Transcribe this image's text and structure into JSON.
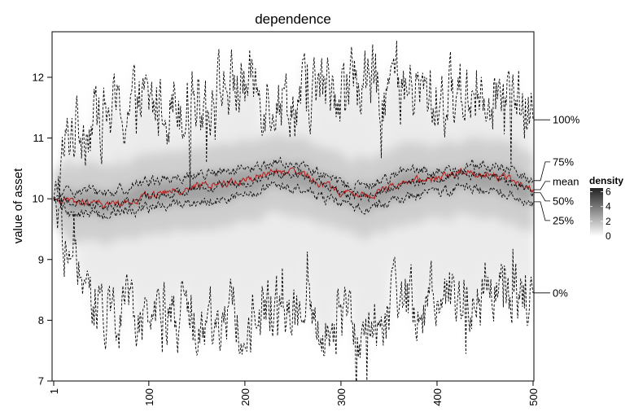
{
  "chart_data": {
    "type": "line",
    "title": "dependence",
    "xlabel": "",
    "ylabel": "value of asset",
    "xlim": [
      1,
      500
    ],
    "ylim": [
      7,
      12.75
    ],
    "x_ticks": [
      1,
      100,
      200,
      300,
      400,
      500
    ],
    "y_ticks": [
      7,
      8,
      9,
      10,
      11,
      12
    ],
    "x_tick_labels": [
      "1",
      "100",
      "200",
      "300",
      "400",
      "500"
    ],
    "y_tick_labels": [
      "7",
      "8",
      "9",
      "10",
      "11",
      "12"
    ],
    "start_value": 10.0,
    "n_steps": 500,
    "background": "density of simulated paths (grayscale shading)",
    "series": [
      {
        "name": "100%",
        "kind": "quantile",
        "end_value": 11.3,
        "color": "#000000",
        "dash": true,
        "anchors": [
          [
            1,
            10
          ],
          [
            20,
            11.2
          ],
          [
            60,
            11.4
          ],
          [
            120,
            11.6
          ],
          [
            200,
            11.9
          ],
          [
            250,
            11.6
          ],
          [
            300,
            11.9
          ],
          [
            350,
            11.9
          ],
          [
            400,
            11.6
          ],
          [
            450,
            11.9
          ],
          [
            500,
            11.3
          ]
        ],
        "noise": 0.65
      },
      {
        "name": "75%",
        "kind": "quantile",
        "end_value": 10.3,
        "color": "#000000",
        "dash": true,
        "anchors": [
          [
            1,
            10
          ],
          [
            20,
            10.15
          ],
          [
            60,
            10.1
          ],
          [
            100,
            10.3
          ],
          [
            150,
            10.4
          ],
          [
            200,
            10.45
          ],
          [
            230,
            10.6
          ],
          [
            260,
            10.55
          ],
          [
            300,
            10.25
          ],
          [
            330,
            10.2
          ],
          [
            360,
            10.45
          ],
          [
            400,
            10.45
          ],
          [
            430,
            10.55
          ],
          [
            470,
            10.5
          ],
          [
            500,
            10.3
          ]
        ],
        "noise": 0.1
      },
      {
        "name": "mean",
        "kind": "mean",
        "end_value": 10.15,
        "color": "#b22222",
        "dash": false,
        "anchors": [
          [
            1,
            10
          ],
          [
            20,
            9.95
          ],
          [
            60,
            9.9
          ],
          [
            100,
            10.05
          ],
          [
            150,
            10.2
          ],
          [
            200,
            10.3
          ],
          [
            230,
            10.45
          ],
          [
            260,
            10.4
          ],
          [
            300,
            10.1
          ],
          [
            330,
            10.05
          ],
          [
            360,
            10.25
          ],
          [
            400,
            10.35
          ],
          [
            430,
            10.45
          ],
          [
            470,
            10.35
          ],
          [
            500,
            10.15
          ]
        ],
        "noise": 0.07
      },
      {
        "name": "50%",
        "kind": "quantile",
        "end_value": 10.1,
        "color": "#000000",
        "dash": true,
        "anchors": [
          [
            1,
            10
          ],
          [
            20,
            9.95
          ],
          [
            60,
            9.88
          ],
          [
            100,
            10.02
          ],
          [
            150,
            10.18
          ],
          [
            200,
            10.28
          ],
          [
            230,
            10.43
          ],
          [
            260,
            10.38
          ],
          [
            300,
            10.08
          ],
          [
            330,
            10.03
          ],
          [
            360,
            10.22
          ],
          [
            400,
            10.33
          ],
          [
            430,
            10.42
          ],
          [
            470,
            10.33
          ],
          [
            500,
            10.1
          ]
        ],
        "noise": 0.08
      },
      {
        "name": "25%",
        "kind": "quantile",
        "end_value": 9.95,
        "color": "#000000",
        "dash": true,
        "anchors": [
          [
            1,
            10
          ],
          [
            20,
            9.75
          ],
          [
            60,
            9.75
          ],
          [
            100,
            9.85
          ],
          [
            150,
            9.95
          ],
          [
            200,
            10.05
          ],
          [
            230,
            10.2
          ],
          [
            260,
            10.15
          ],
          [
            300,
            9.9
          ],
          [
            330,
            9.85
          ],
          [
            360,
            10.0
          ],
          [
            400,
            10.1
          ],
          [
            430,
            10.2
          ],
          [
            470,
            10.1
          ],
          [
            500,
            9.95
          ]
        ],
        "noise": 0.1
      },
      {
        "name": "0%",
        "kind": "quantile",
        "end_value": 8.45,
        "color": "#000000",
        "dash": true,
        "anchors": [
          [
            1,
            10
          ],
          [
            20,
            8.7
          ],
          [
            60,
            8.2
          ],
          [
            100,
            8.2
          ],
          [
            150,
            8.1
          ],
          [
            200,
            8.0
          ],
          [
            250,
            8.2
          ],
          [
            300,
            7.9
          ],
          [
            350,
            8.1
          ],
          [
            400,
            8.5
          ],
          [
            450,
            8.3
          ],
          [
            500,
            8.45
          ]
        ],
        "noise": 0.6
      }
    ],
    "legend": {
      "title": "density",
      "ticks": [
        0,
        2,
        4,
        6
      ],
      "tick_labels": [
        "0",
        "2",
        "4",
        "6"
      ],
      "range": [
        0,
        6.5
      ],
      "placement": "right",
      "colors": [
        "#ffffff",
        "#222222"
      ]
    }
  }
}
